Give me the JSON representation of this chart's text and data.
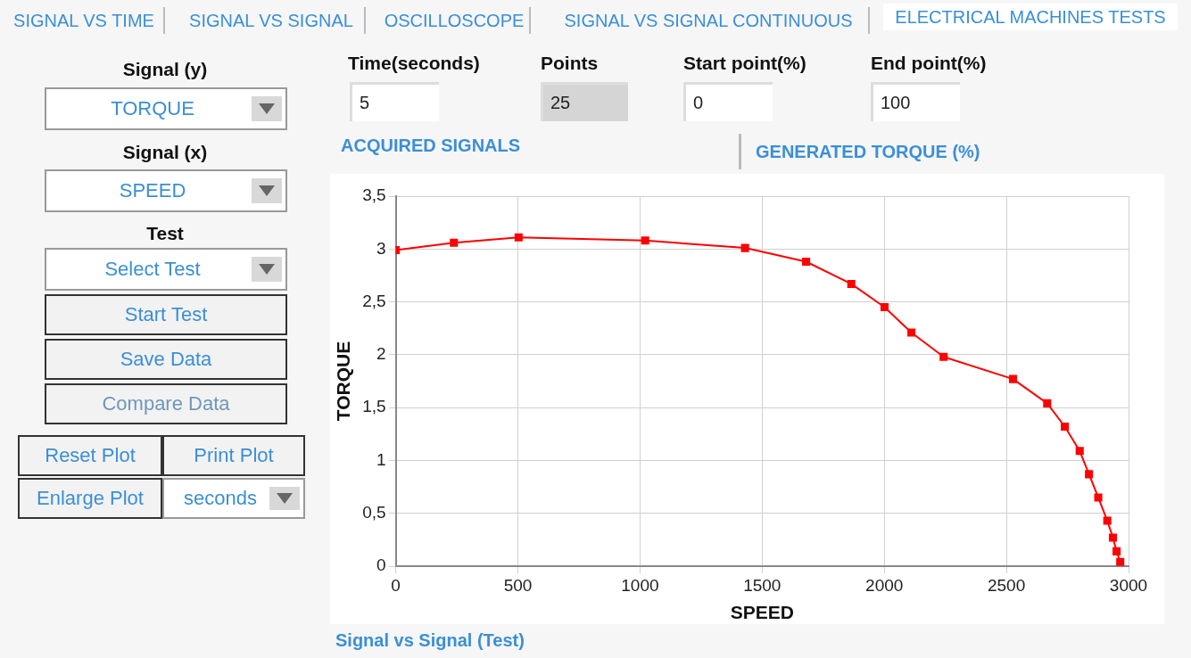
{
  "chart_data": {
    "type": "line",
    "xlabel": "SPEED",
    "ylabel": "TORQUE",
    "x": [
      0,
      238,
      503,
      1021,
      1430,
      1680,
      1865,
      2001,
      2111,
      2243,
      2527,
      2667,
      2739,
      2800,
      2838,
      2876,
      2913,
      2936,
      2951,
      2966
    ],
    "series": [
      {
        "color": "#ff0000",
        "values": [
          2.99,
          3.06,
          3.11,
          3.08,
          3.01,
          2.88,
          2.67,
          2.45,
          2.21,
          1.98,
          1.77,
          1.54,
          1.32,
          1.09,
          0.87,
          0.65,
          0.43,
          0.27,
          0.14,
          0.04
        ]
      }
    ],
    "xlim": [
      0,
      3000
    ],
    "xticks": [
      0,
      500,
      1000,
      1500,
      2000,
      2500,
      3000
    ],
    "ylim": [
      0,
      3.5
    ],
    "yticks": [
      0,
      {
        "value": 0.5,
        "label": "0,5"
      },
      1,
      {
        "value": 1.5,
        "label": "1,5"
      },
      2,
      {
        "value": 2.5,
        "label": "2,5"
      },
      3,
      {
        "value": 3.5,
        "label": "3,5"
      }
    ],
    "grid": true,
    "marker": "square",
    "line_style": "solid",
    "annotations": [
      "SIGNAL VS TIME",
      "SIGNAL VS SIGNAL",
      "OSCILLOSCOPE",
      "SIGNAL VS SIGNAL CONTINUOUS",
      "ELECTRICAL MACHINES TESTS",
      "Signal (y)",
      "TORQUE",
      "Signal (x)",
      "SPEED",
      "Test",
      "Select Test",
      "Start Test",
      "Save Data",
      "Compare Data",
      "Reset Plot",
      "Print Plot",
      "Enlarge Plot",
      "seconds",
      "Time(seconds)",
      "5",
      "Points",
      "25",
      "Start point(%)",
      "0",
      "End point(%)",
      "100",
      "ACQUIRED SIGNALS",
      "GENERATED TORQUE (%)",
      "Signal vs Signal (Test)"
    ]
  }
}
